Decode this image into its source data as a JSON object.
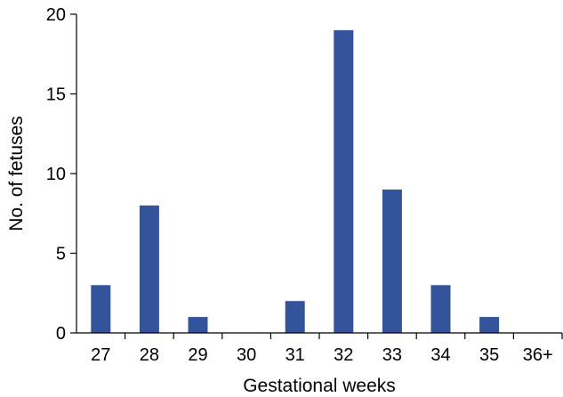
{
  "chart_data": {
    "type": "bar",
    "title": "",
    "xlabel": "Gestational weeks",
    "ylabel": "No. of fetuses",
    "categories": [
      "27",
      "28",
      "29",
      "30",
      "31",
      "32",
      "33",
      "34",
      "35",
      "36+"
    ],
    "values": [
      3,
      8,
      1,
      0,
      2,
      19,
      9,
      3,
      1,
      0
    ],
    "ylim": [
      0,
      20
    ],
    "yticks": [
      "0",
      "5",
      "10",
      "15",
      "20"
    ],
    "grid": false,
    "legend": "none",
    "bar_color": "#33549a"
  }
}
